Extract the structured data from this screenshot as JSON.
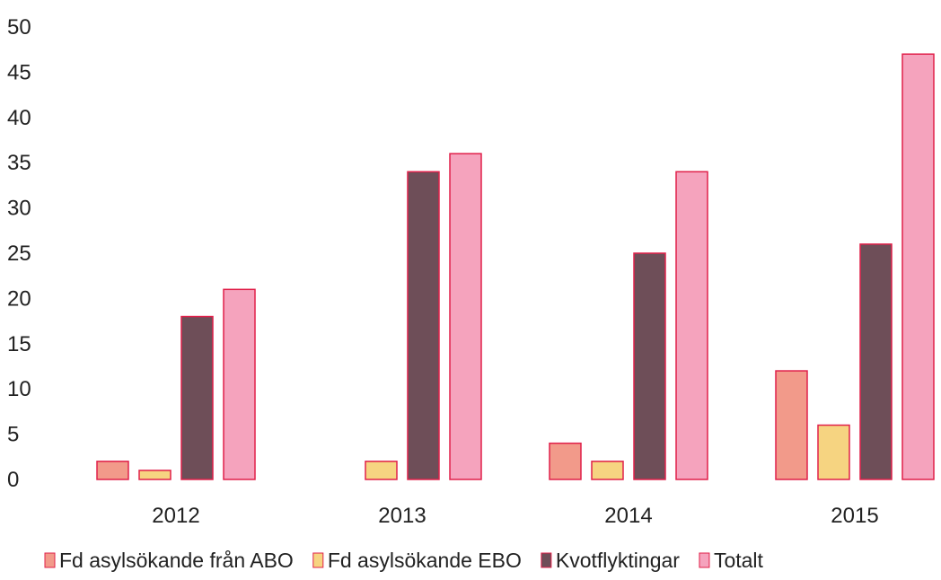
{
  "chart_data": {
    "type": "bar",
    "title": "",
    "xlabel": "",
    "ylabel": "",
    "ylim": [
      0,
      50
    ],
    "yticks": [
      0,
      5,
      10,
      15,
      20,
      25,
      30,
      35,
      40,
      45,
      50
    ],
    "grid": false,
    "legend_position": "bottom",
    "categories": [
      "2012",
      "2013",
      "2014",
      "2015"
    ],
    "series": [
      {
        "name": "Fd asylsökande från ABO",
        "color": "#f29a8a",
        "values": [
          2,
          0,
          4,
          12
        ]
      },
      {
        "name": "Fd asylsökande EBO",
        "color": "#f6d481",
        "values": [
          1,
          2,
          2,
          6
        ]
      },
      {
        "name": "Kvotflyktingar",
        "color": "#6e4e58",
        "values": [
          18,
          34,
          25,
          26
        ]
      },
      {
        "name": "Totalt",
        "color": "#f5a3bd",
        "values": [
          21,
          36,
          34,
          47
        ]
      }
    ]
  }
}
